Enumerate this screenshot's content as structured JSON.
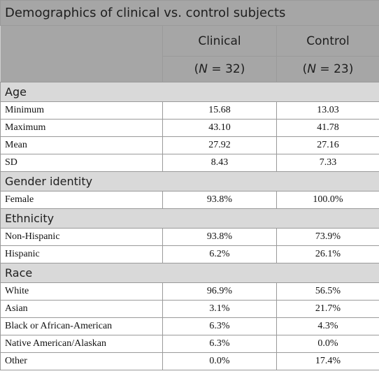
{
  "table": {
    "title": "Demographics of clinical vs. control subjects",
    "columns": [
      {
        "name": "Clinical",
        "n": [
          "(",
          "N",
          " = 32)"
        ]
      },
      {
        "name": "Control",
        "n": [
          "(",
          "N",
          " = 23)"
        ]
      }
    ],
    "sections": [
      {
        "title": "Age",
        "rows": [
          [
            "Minimum",
            "15.68",
            "13.03"
          ],
          [
            "Maximum",
            "43.10",
            "41.78"
          ],
          [
            "Mean",
            "27.92",
            "27.16"
          ],
          [
            "SD",
            "8.43",
            "7.33"
          ]
        ]
      },
      {
        "title": "Gender identity",
        "rows": [
          [
            "Female",
            "93.8%",
            "100.0%"
          ]
        ]
      },
      {
        "title": "Ethnicity",
        "rows": [
          [
            "Non-Hispanic",
            "93.8%",
            "73.9%"
          ],
          [
            "Hispanic",
            "6.2%",
            "26.1%"
          ]
        ]
      },
      {
        "title": "Race",
        "rows": [
          [
            "White",
            "96.9%",
            "56.5%"
          ],
          [
            "Asian",
            "3.1%",
            "21.7%"
          ],
          [
            "Black or African-American",
            "6.3%",
            "4.3%"
          ],
          [
            "Native American/Alaskan",
            "6.3%",
            "0.0%"
          ],
          [
            "Other",
            "0.0%",
            "17.4%"
          ]
        ]
      }
    ]
  }
}
